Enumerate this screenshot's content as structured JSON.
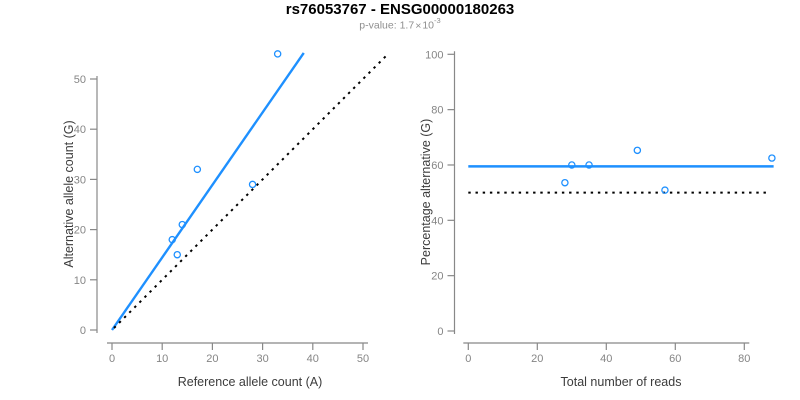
{
  "header": {
    "title": "rs76053767 - ENSG00000180263",
    "subtitle": {
      "prefix": "p-value: ",
      "mantissa": "1.7",
      "times": "×",
      "base": "10",
      "exponent": "-3"
    }
  },
  "colors": {
    "accent_blue": "#1E90FF",
    "reference_black": "#000000",
    "axis_line": "#888888",
    "tick_label": "#858585",
    "axis_title": "#3c3c3c",
    "title_text": "#000000",
    "subtitle_text": "#8f8f8f",
    "background": "#ffffff"
  },
  "chart_data": [
    {
      "type": "scatter",
      "panel": "allele-counts",
      "xlabel": "Reference allele count (A)",
      "ylabel": "Alternative allele count (G)",
      "xlim": [
        0,
        55
      ],
      "ylim": [
        0,
        55
      ],
      "xticks": [
        0,
        10,
        20,
        30,
        40,
        50
      ],
      "yticks": [
        0,
        10,
        20,
        30,
        40,
        50
      ],
      "grid": false,
      "legend": null,
      "points": [
        [
          12,
          18
        ],
        [
          13,
          15
        ],
        [
          14,
          21
        ],
        [
          17,
          32
        ],
        [
          28,
          29
        ],
        [
          33,
          55
        ]
      ],
      "lines": [
        {
          "name": "fit-line",
          "style": "solid",
          "color": "#1E90FF",
          "x1": 0,
          "y1": 0,
          "x2": 38.2,
          "y2": 55.2
        },
        {
          "name": "identity-line",
          "style": "dotted",
          "color": "#000000",
          "x1": 0.4,
          "y1": 0.4,
          "x2": 55,
          "y2": 55
        }
      ]
    },
    {
      "type": "scatter",
      "panel": "percentage-alternative",
      "xlabel": "Total number of reads",
      "ylabel": "Percentage alternative (G)",
      "xlim": [
        0,
        90
      ],
      "ylim": [
        0,
        100
      ],
      "xticks": [
        0,
        20,
        40,
        60,
        80
      ],
      "yticks": [
        0,
        20,
        40,
        60,
        80,
        100
      ],
      "grid": false,
      "legend": null,
      "points": [
        [
          28,
          53.6
        ],
        [
          30,
          60
        ],
        [
          35,
          60
        ],
        [
          49,
          65.3
        ],
        [
          57,
          50.9
        ],
        [
          88,
          62.5
        ]
      ],
      "lines": [
        {
          "name": "fit-line",
          "style": "solid",
          "color": "#1E90FF",
          "x1": 0,
          "y1": 59.5,
          "x2": 88.5,
          "y2": 59.5
        },
        {
          "name": "reference-line",
          "style": "dotted",
          "color": "#000000",
          "x1": 0,
          "y1": 50,
          "x2": 87,
          "y2": 50
        }
      ]
    }
  ]
}
